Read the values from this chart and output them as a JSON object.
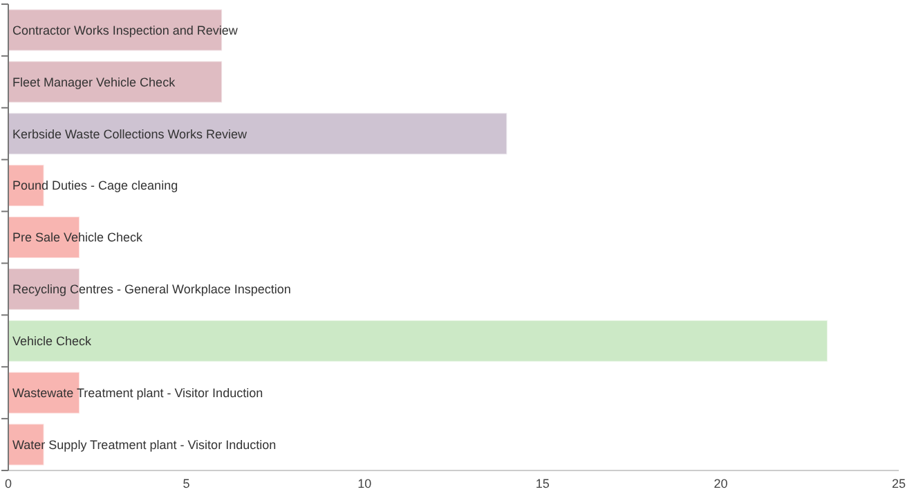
{
  "chart_data": {
    "type": "bar",
    "orientation": "horizontal",
    "categories": [
      "Contractor Works Inspection and Review",
      "Fleet Manager Vehicle Check",
      "Kerbside Waste Collections Works Review",
      "Pound Duties - Cage cleaning",
      "Pre Sale Vehicle Check",
      "Recycling Centres - General Workplace Inspection",
      "Vehicle Check",
      "Wastewate Treatment plant - Visitor Induction",
      "Water Supply Treatment plant - Visitor Induction"
    ],
    "values": [
      6,
      6,
      14,
      1,
      2,
      2,
      23,
      2,
      1
    ],
    "colors": [
      "#dfbcc2",
      "#dfbcc2",
      "#cec3d2",
      "#f8b5b1",
      "#f8b5b1",
      "#dfbcc2",
      "#cce9c6",
      "#f8b5b1",
      "#f8b5b1"
    ],
    "xlim": [
      0,
      25
    ],
    "xticks": [
      0,
      5,
      10,
      15,
      20,
      25
    ],
    "grid": false
  }
}
